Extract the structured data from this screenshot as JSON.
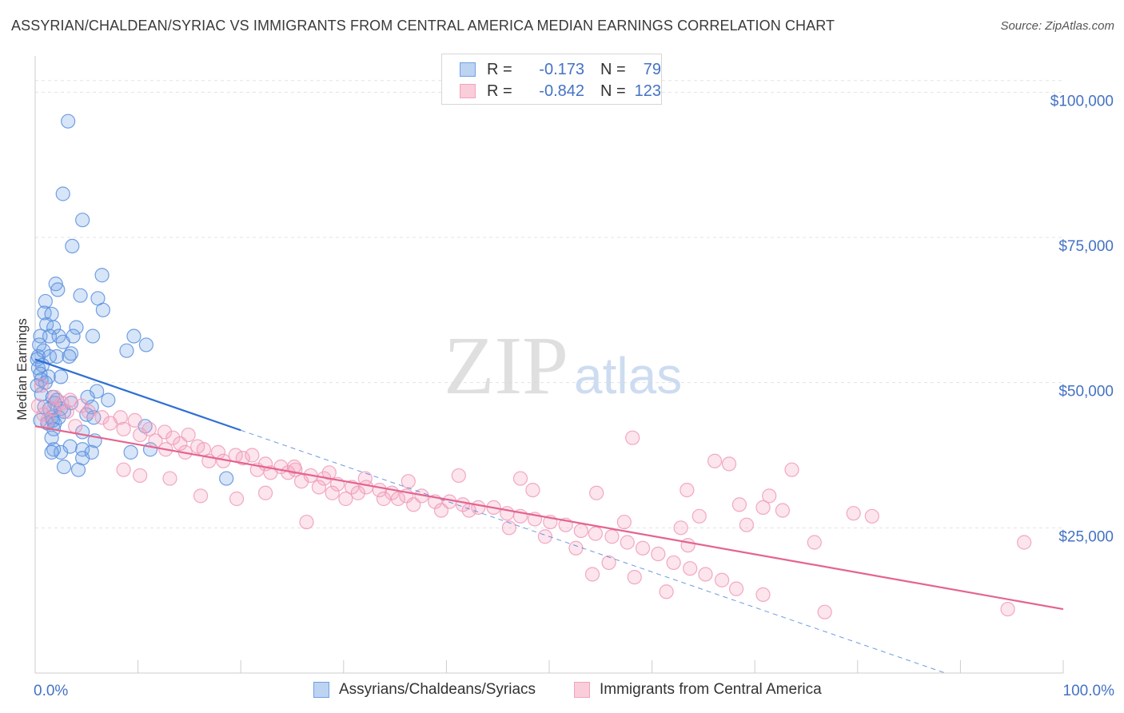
{
  "header": {
    "title": "ASSYRIAN/CHALDEAN/SYRIAC VS IMMIGRANTS FROM CENTRAL AMERICA MEDIAN EARNINGS CORRELATION CHART",
    "source": "Source: ZipAtlas.com"
  },
  "watermark": {
    "zip": "ZIP",
    "atlas": "atlas"
  },
  "legend": {
    "rows": [
      {
        "r_key": "R =",
        "r_value": "-0.173",
        "n_key": "N =",
        "n_value": "79"
      },
      {
        "r_key": "R =",
        "r_value": "-0.842",
        "n_key": "N =",
        "n_value": "123"
      }
    ]
  },
  "chart_data": {
    "type": "scatter",
    "title": "ASSYRIAN/CHALDEAN/SYRIAC VS IMMIGRANTS FROM CENTRAL AMERICA MEDIAN EARNINGS CORRELATION CHART",
    "xlabel": "",
    "ylabel": "Median Earnings",
    "xlim": [
      0,
      100
    ],
    "ylim": [
      0,
      105000
    ],
    "x_tick_labels": [
      "0.0%",
      "100.0%"
    ],
    "y_ticks": [
      25000,
      50000,
      75000,
      100000
    ],
    "y_tick_labels": [
      "$25,000",
      "$50,000",
      "$75,000",
      "$100,000"
    ],
    "grid": true,
    "legend_position": "bottom",
    "colors": {
      "blue": "#6fa0e6",
      "blue_line": "#2e6fd4",
      "pink": "#f4a3bf",
      "pink_line": "#e4648e"
    },
    "series": [
      {
        "name": "Assyrians/Chaldeans/Syriacs",
        "color": "#6fa0e6",
        "r": -0.173,
        "n": 79,
        "trend": {
          "x0": 0,
          "y0": 54000,
          "x1": 20,
          "y1": 41800,
          "dash_to_x": 100,
          "dash_to_y": -7000
        },
        "points": [
          [
            3.2,
            95000
          ],
          [
            2.7,
            82500
          ],
          [
            4.6,
            78000
          ],
          [
            3.6,
            73500
          ],
          [
            6.5,
            68500
          ],
          [
            2.0,
            67000
          ],
          [
            2.2,
            66000
          ],
          [
            4.4,
            65000
          ],
          [
            6.1,
            64500
          ],
          [
            1.0,
            64000
          ],
          [
            6.6,
            62500
          ],
          [
            0.9,
            62000
          ],
          [
            1.6,
            61800
          ],
          [
            1.1,
            60000
          ],
          [
            1.8,
            59500
          ],
          [
            4.0,
            59500
          ],
          [
            0.5,
            58000
          ],
          [
            1.4,
            58000
          ],
          [
            2.3,
            58000
          ],
          [
            3.7,
            58000
          ],
          [
            5.6,
            58000
          ],
          [
            9.6,
            58000
          ],
          [
            2.7,
            57000
          ],
          [
            0.4,
            56500
          ],
          [
            10.8,
            56500
          ],
          [
            0.8,
            55500
          ],
          [
            8.9,
            55500
          ],
          [
            3.5,
            55000
          ],
          [
            0.3,
            54500
          ],
          [
            1.4,
            54500
          ],
          [
            2.1,
            54500
          ],
          [
            3.3,
            54500
          ],
          [
            0.2,
            54000
          ],
          [
            0.7,
            53000
          ],
          [
            0.3,
            52500
          ],
          [
            0.5,
            51500
          ],
          [
            1.3,
            51000
          ],
          [
            2.5,
            51000
          ],
          [
            0.6,
            50500
          ],
          [
            1.0,
            50000
          ],
          [
            0.2,
            49500
          ],
          [
            6.0,
            48500
          ],
          [
            0.6,
            48000
          ],
          [
            1.7,
            47500
          ],
          [
            5.1,
            47500
          ],
          [
            2.1,
            47000
          ],
          [
            7.1,
            47000
          ],
          [
            1.9,
            46500
          ],
          [
            3.5,
            46500
          ],
          [
            0.9,
            45800
          ],
          [
            5.5,
            45800
          ],
          [
            1.4,
            45500
          ],
          [
            2.5,
            45500
          ],
          [
            2.8,
            45000
          ],
          [
            5.0,
            44500
          ],
          [
            1.6,
            44000
          ],
          [
            2.3,
            44000
          ],
          [
            5.7,
            44000
          ],
          [
            0.5,
            43500
          ],
          [
            1.7,
            43500
          ],
          [
            1.2,
            43000
          ],
          [
            1.9,
            43000
          ],
          [
            10.7,
            42500
          ],
          [
            1.8,
            42000
          ],
          [
            4.6,
            41500
          ],
          [
            1.6,
            40500
          ],
          [
            5.8,
            40000
          ],
          [
            3.4,
            39000
          ],
          [
            1.8,
            38500
          ],
          [
            4.6,
            38500
          ],
          [
            11.2,
            38500
          ],
          [
            2.5,
            38000
          ],
          [
            1.6,
            38000
          ],
          [
            9.3,
            38000
          ],
          [
            5.5,
            38000
          ],
          [
            4.6,
            37000
          ],
          [
            2.8,
            35500
          ],
          [
            4.2,
            35000
          ],
          [
            18.6,
            33500
          ]
        ]
      },
      {
        "name": "Immigrants from Central America",
        "color": "#f4a3bf",
        "r": -0.842,
        "n": 123,
        "trend": {
          "x0": 0,
          "y0": 42500,
          "x1": 100,
          "y1": 11000
        },
        "points": [
          [
            0.6,
            49500
          ],
          [
            1.9,
            47500
          ],
          [
            3.4,
            47000
          ],
          [
            2.6,
            46500
          ],
          [
            0.3,
            46000
          ],
          [
            4.5,
            46000
          ],
          [
            1.8,
            45500
          ],
          [
            3.1,
            45000
          ],
          [
            5.2,
            45000
          ],
          [
            0.8,
            44500
          ],
          [
            6.5,
            44000
          ],
          [
            8.3,
            44000
          ],
          [
            1.2,
            43500
          ],
          [
            9.7,
            43500
          ],
          [
            7.3,
            43000
          ],
          [
            3.9,
            42500
          ],
          [
            11.1,
            42000
          ],
          [
            8.6,
            42000
          ],
          [
            12.6,
            41500
          ],
          [
            10.2,
            41000
          ],
          [
            13.4,
            40500
          ],
          [
            14.9,
            41000
          ],
          [
            11.7,
            40000
          ],
          [
            14.1,
            39500
          ],
          [
            15.8,
            39000
          ],
          [
            12.7,
            38500
          ],
          [
            16.4,
            38500
          ],
          [
            17.8,
            38000
          ],
          [
            14.6,
            38000
          ],
          [
            19.5,
            37500
          ],
          [
            21.1,
            37500
          ],
          [
            20.2,
            37000
          ],
          [
            16.9,
            36500
          ],
          [
            18.3,
            36500
          ],
          [
            22.4,
            36000
          ],
          [
            23.9,
            35500
          ],
          [
            25.3,
            35000
          ],
          [
            21.6,
            35000
          ],
          [
            22.9,
            34500
          ],
          [
            24.6,
            34500
          ],
          [
            26.8,
            34000
          ],
          [
            28.1,
            33500
          ],
          [
            25.9,
            33000
          ],
          [
            29.4,
            32500
          ],
          [
            30.8,
            32000
          ],
          [
            27.6,
            32000
          ],
          [
            32.2,
            32000
          ],
          [
            33.5,
            31500
          ],
          [
            34.7,
            31000
          ],
          [
            28.9,
            31000
          ],
          [
            31.4,
            31000
          ],
          [
            36.1,
            30500
          ],
          [
            37.6,
            30500
          ],
          [
            30.2,
            30000
          ],
          [
            33.9,
            30000
          ],
          [
            35.3,
            30000
          ],
          [
            38.9,
            29500
          ],
          [
            40.3,
            29500
          ],
          [
            41.6,
            29000
          ],
          [
            36.8,
            29000
          ],
          [
            43.1,
            28500
          ],
          [
            44.6,
            28500
          ],
          [
            39.5,
            28000
          ],
          [
            42.2,
            28000
          ],
          [
            45.9,
            27500
          ],
          [
            47.2,
            27000
          ],
          [
            48.6,
            26500
          ],
          [
            50.1,
            26000
          ],
          [
            51.6,
            25500
          ],
          [
            46.1,
            25000
          ],
          [
            53.1,
            24500
          ],
          [
            54.5,
            24000
          ],
          [
            49.6,
            23500
          ],
          [
            56.1,
            23500
          ],
          [
            57.6,
            22500
          ],
          [
            52.6,
            21500
          ],
          [
            59.1,
            21500
          ],
          [
            60.6,
            20500
          ],
          [
            26.4,
            26000
          ],
          [
            55.8,
            19000
          ],
          [
            62.1,
            19000
          ],
          [
            63.7,
            18000
          ],
          [
            65.2,
            17000
          ],
          [
            58.3,
            16500
          ],
          [
            66.8,
            16000
          ],
          [
            54.2,
            17000
          ],
          [
            61.4,
            14000
          ],
          [
            68.2,
            14500
          ],
          [
            70.8,
            13500
          ],
          [
            81.4,
            27000
          ],
          [
            96.2,
            22500
          ],
          [
            76.8,
            10500
          ],
          [
            94.6,
            11000
          ],
          [
            63.4,
            31500
          ],
          [
            67.5,
            36000
          ],
          [
            66.1,
            36500
          ],
          [
            58.1,
            40500
          ],
          [
            54.6,
            31000
          ],
          [
            48.4,
            31500
          ],
          [
            47.2,
            33500
          ],
          [
            41.2,
            34000
          ],
          [
            36.3,
            33000
          ],
          [
            32.1,
            33500
          ],
          [
            28.6,
            34500
          ],
          [
            25.2,
            35500
          ],
          [
            22.4,
            31000
          ],
          [
            19.6,
            30000
          ],
          [
            16.1,
            30500
          ],
          [
            13.1,
            33500
          ],
          [
            10.2,
            34000
          ],
          [
            8.6,
            35000
          ],
          [
            62.8,
            25000
          ],
          [
            68.5,
            29000
          ],
          [
            71.4,
            30500
          ],
          [
            73.6,
            35000
          ],
          [
            57.3,
            26000
          ],
          [
            63.5,
            22000
          ],
          [
            69.2,
            25500
          ],
          [
            75.8,
            22500
          ],
          [
            64.6,
            27000
          ],
          [
            70.8,
            28500
          ],
          [
            72.7,
            28000
          ],
          [
            79.6,
            27500
          ]
        ]
      }
    ]
  },
  "bottom_legend": {
    "items": [
      {
        "label": "Assyrians/Chaldeans/Syriacs"
      },
      {
        "label": "Immigrants from Central America"
      }
    ]
  }
}
